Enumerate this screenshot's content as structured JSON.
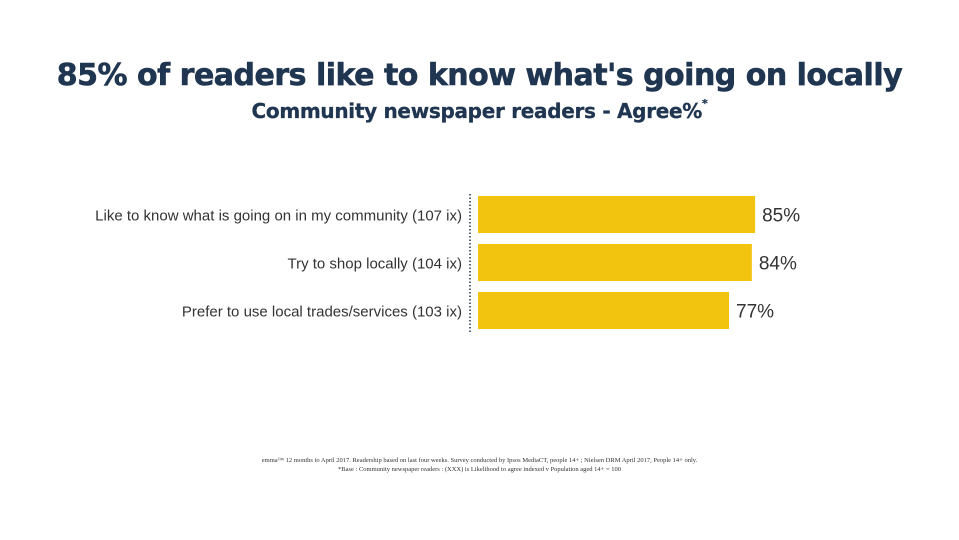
{
  "title": "85% of readers like to know what's going on locally",
  "subtitle": "Community newspaper readers - Agree%",
  "subtitle_marker": "*",
  "colors": {
    "bar": "#f2c30f",
    "title": "#1f3550",
    "label": "#333333",
    "axis": "#1f3550"
  },
  "chart_data": {
    "type": "bar",
    "orientation": "horizontal",
    "categories": [
      "Like to know what is going on in my community (107 ix)",
      "Try to shop locally (104 ix)",
      "Prefer to use local trades/services (103 ix)"
    ],
    "values": [
      85,
      84,
      77
    ],
    "value_labels": [
      "85%",
      "84%",
      "77%"
    ],
    "xlim": [
      0,
      100
    ],
    "grid": false,
    "legend": "none"
  },
  "footnotes": [
    "emma™ 12 months to April 2017. Readership based on last four weeks. Survey conducted by Ipsos MediaCT, people 14+ ; Nielsen DRM April 2017, People 14+ only.",
    "*Base : Community newspaper readers : (XXX) is Likelihood to agree indexed v Population aged 14+ = 100"
  ]
}
